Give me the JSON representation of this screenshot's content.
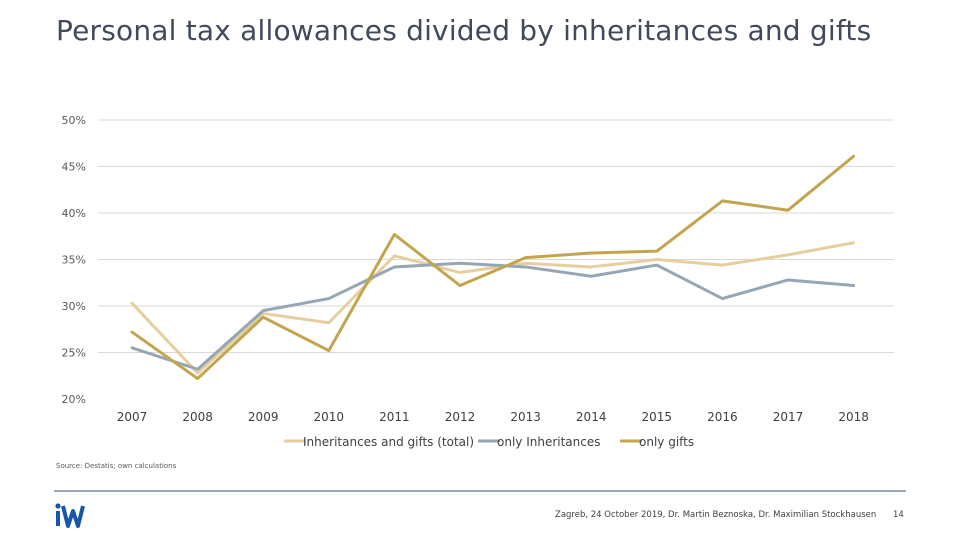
{
  "slide": {
    "title": "Personal tax allowances divided by inheritances and gifts",
    "source": "Source: Destatis; own calculations",
    "credit": "Zagreb, 24 October 2019, Dr. Martin Beznoska, Dr. Maximilian Stockhausen",
    "page_number": "14",
    "logo_text": "iW"
  },
  "chart_data": {
    "type": "line",
    "title": "",
    "xlabel": "",
    "ylabel": "",
    "categories": [
      "2007",
      "2008",
      "2009",
      "2010",
      "2011",
      "2012",
      "2013",
      "2014",
      "2015",
      "2016",
      "2017",
      "2018"
    ],
    "ylim": [
      20,
      50
    ],
    "yticks": [
      20,
      25,
      30,
      35,
      40,
      45,
      50
    ],
    "ytick_labels": [
      "20%",
      "25%",
      "30%",
      "35%",
      "40%",
      "45%",
      "50%"
    ],
    "grid": true,
    "legend_position": "bottom",
    "series": [
      {
        "name": "Inheritances and gifts (total)",
        "color": "#e6cf9e",
        "values": [
          30.3,
          22.8,
          29.2,
          28.2,
          35.4,
          33.6,
          34.6,
          34.2,
          35.0,
          34.4,
          35.5,
          36.8
        ]
      },
      {
        "name": "only Inheritances",
        "color": "#97a6b5",
        "values": [
          25.5,
          23.2,
          29.5,
          30.8,
          34.2,
          34.6,
          34.2,
          33.2,
          34.4,
          30.8,
          32.8,
          32.2
        ]
      },
      {
        "name": "only gifts",
        "color": "#c2a54e",
        "values": [
          27.2,
          22.2,
          28.8,
          25.2,
          37.7,
          32.2,
          35.2,
          35.7,
          35.9,
          41.3,
          40.3,
          46.1
        ]
      }
    ]
  }
}
